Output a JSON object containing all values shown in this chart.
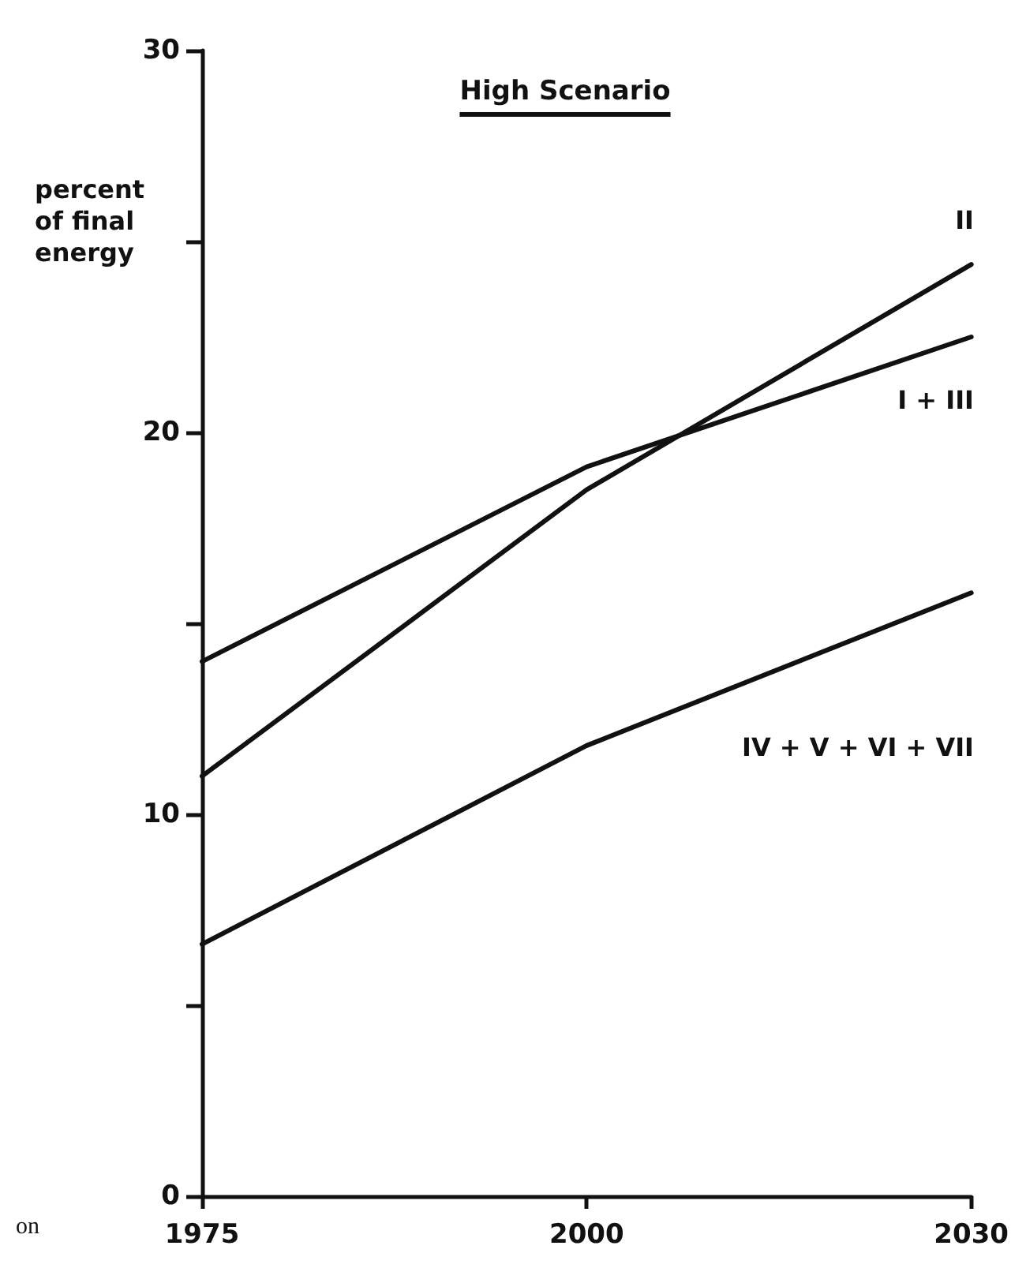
{
  "chart_data": {
    "type": "line",
    "title": "High Scenario",
    "ylabel": "percent\nof final\nenergy",
    "categories": [
      "1975",
      "2000",
      "2030"
    ],
    "series": [
      {
        "name": "II",
        "color": "#111111",
        "values": [
          11,
          18.5,
          24.4
        ]
      },
      {
        "name": "I + III",
        "color": "#111111",
        "values": [
          14,
          19.1,
          22.5
        ]
      },
      {
        "name": "IV + V + VI + VII",
        "color": "#111111",
        "values": [
          6.6,
          11.8,
          15.8
        ]
      }
    ],
    "ylim": [
      0,
      30
    ],
    "yticks": [
      0,
      {
        "value": 5,
        "label": null
      },
      10,
      {
        "value": 15,
        "label": null
      },
      20,
      {
        "value": 25,
        "label": null
      },
      30
    ],
    "grid": false,
    "legend": false,
    "marker": "none",
    "line_style": "solid",
    "annotations": [
      "on"
    ]
  }
}
